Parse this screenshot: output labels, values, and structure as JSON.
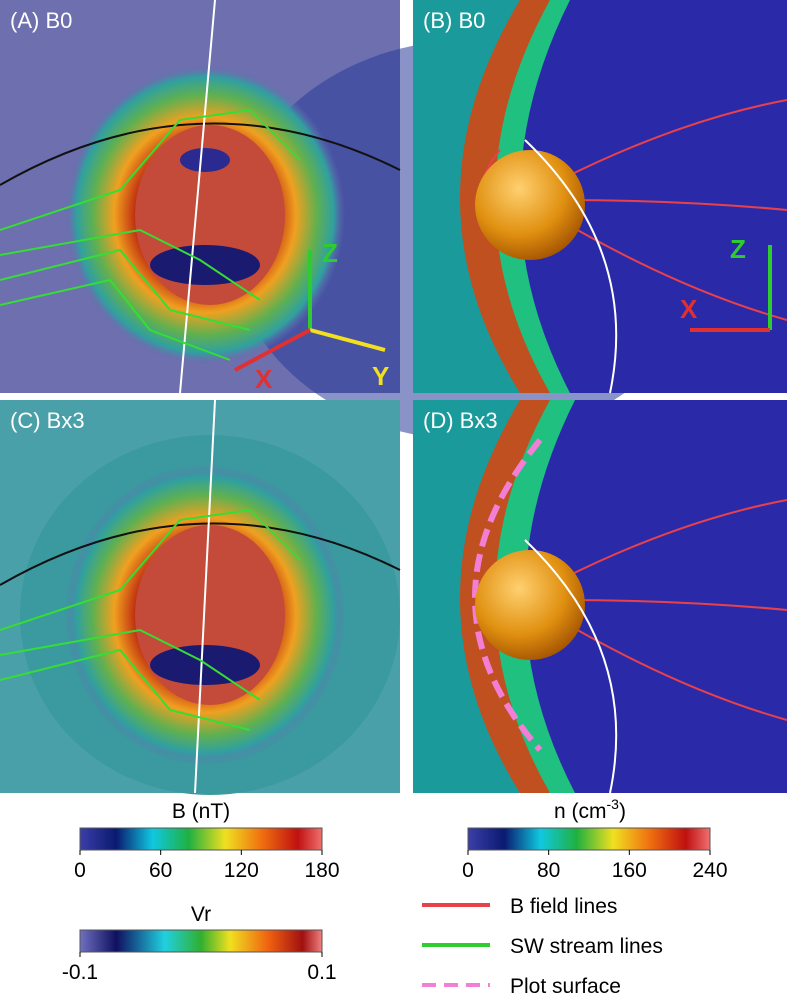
{
  "panels": [
    {
      "label": "(A) B0",
      "axes": [
        "Z",
        "X",
        "Y"
      ]
    },
    {
      "label": "(B) B0",
      "axes": [
        "Z",
        "X"
      ]
    },
    {
      "label": "(C) Bx3"
    },
    {
      "label": "(D) Bx3"
    }
  ],
  "colorbars": [
    {
      "title": "B (nT)",
      "ticks": [
        0,
        60,
        120,
        180
      ]
    },
    {
      "title": "Vr",
      "ticks": [
        -0.1,
        0.1
      ]
    },
    {
      "title": "n (cm",
      "title_sup": "-3",
      "title_end": ")",
      "ticks": [
        0,
        80,
        160,
        240
      ]
    }
  ],
  "legend": [
    {
      "label": "B field lines",
      "color": "#e8414a"
    },
    {
      "label": "SW stream lines",
      "color": "#2ecc2e"
    },
    {
      "label": "Plot surface",
      "color": "#f27ed6"
    }
  ]
}
